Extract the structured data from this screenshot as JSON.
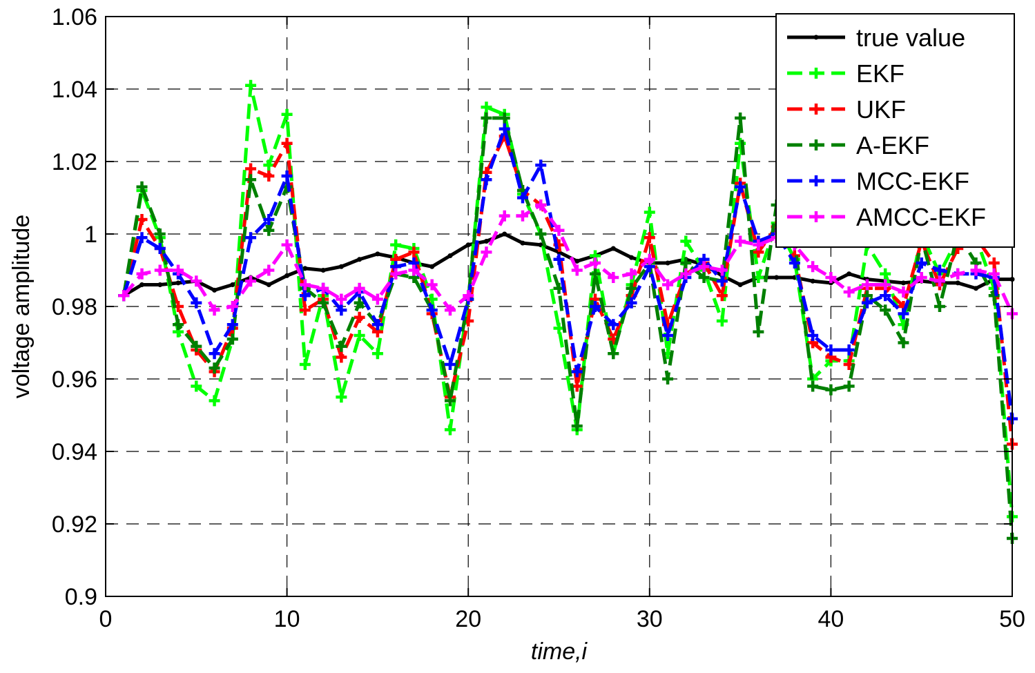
{
  "chart_data": {
    "type": "line",
    "title": "",
    "xlabel": "time,i",
    "ylabel": "voltage amplitude",
    "xlim": [
      0,
      50
    ],
    "ylim": [
      0.9,
      1.06
    ],
    "xticks": [
      0,
      10,
      20,
      30,
      40,
      50
    ],
    "yticks": [
      0.9,
      0.92,
      0.94,
      0.96,
      0.98,
      1.0,
      1.02,
      1.04,
      1.06
    ],
    "xtick_labels": [
      "0",
      "10",
      "20",
      "30",
      "40",
      "50"
    ],
    "ytick_labels": [
      "0.9",
      "0.92",
      "0.94",
      "0.96",
      "0.98",
      "1",
      "1.02",
      "1.04",
      "1.06"
    ],
    "grid": true,
    "legend_position": "top-right",
    "x": [
      1,
      2,
      3,
      4,
      5,
      6,
      7,
      8,
      9,
      10,
      11,
      12,
      13,
      14,
      15,
      16,
      17,
      18,
      19,
      20,
      21,
      22,
      23,
      24,
      25,
      26,
      27,
      28,
      29,
      30,
      31,
      32,
      33,
      34,
      35,
      36,
      37,
      38,
      39,
      40,
      41,
      42,
      43,
      44,
      45,
      46,
      47,
      48,
      49,
      50
    ],
    "series": [
      {
        "name": "true value",
        "color": "#000000",
        "dashed": false,
        "values": [
          0.983,
          0.986,
          0.986,
          0.9865,
          0.987,
          0.9845,
          0.986,
          0.988,
          0.986,
          0.9885,
          0.9905,
          0.99,
          0.991,
          0.993,
          0.9945,
          0.9935,
          0.992,
          0.991,
          0.994,
          0.997,
          0.998,
          1.0,
          0.9975,
          0.997,
          0.995,
          0.9925,
          0.994,
          0.996,
          0.9935,
          0.992,
          0.992,
          0.993,
          0.9915,
          0.9885,
          0.986,
          0.988,
          0.988,
          0.988,
          0.987,
          0.9865,
          0.989,
          0.9875,
          0.987,
          0.9865,
          0.987,
          0.9865,
          0.9865,
          0.985,
          0.9875,
          0.9875
        ]
      },
      {
        "name": "EKF",
        "color": "#00ff00",
        "dashed": true,
        "values": [
          0.983,
          1.012,
          0.999,
          0.973,
          0.958,
          0.954,
          0.971,
          1.041,
          1.019,
          1.033,
          0.964,
          0.983,
          0.955,
          0.972,
          0.967,
          0.997,
          0.996,
          0.982,
          0.946,
          0.982,
          1.035,
          1.033,
          1.011,
          1.0,
          0.974,
          0.946,
          0.994,
          0.967,
          0.986,
          1.006,
          0.967,
          0.998,
          0.99,
          0.976,
          1.025,
          0.988,
          1.003,
          0.993,
          0.96,
          0.965,
          0.965,
          0.997,
          0.989,
          0.975,
          1.0,
          0.989,
          0.999,
          0.999,
          0.985,
          0.922
        ]
      },
      {
        "name": "UKF",
        "color": "#ff0000",
        "dashed": true,
        "values": [
          0.983,
          1.004,
          0.996,
          0.98,
          0.968,
          0.962,
          0.974,
          1.018,
          1.016,
          1.025,
          0.979,
          0.982,
          0.966,
          0.977,
          0.973,
          0.993,
          0.995,
          0.978,
          0.955,
          0.976,
          1.017,
          1.027,
          1.012,
          1.008,
          0.997,
          0.958,
          0.982,
          0.971,
          0.983,
          0.999,
          0.975,
          0.989,
          0.992,
          0.983,
          1.014,
          0.995,
          1.002,
          0.994,
          0.97,
          0.966,
          0.964,
          0.985,
          0.985,
          0.98,
          0.998,
          0.986,
          0.996,
          0.999,
          0.992,
          0.942
        ]
      },
      {
        "name": "A-EKF",
        "color": "#008000",
        "dashed": true,
        "values": [
          0.983,
          1.013,
          1.0,
          0.975,
          0.969,
          0.963,
          0.971,
          1.015,
          1.001,
          1.013,
          0.985,
          0.981,
          0.969,
          0.981,
          0.975,
          0.989,
          0.988,
          0.979,
          0.954,
          0.982,
          1.032,
          1.032,
          1.012,
          1.0,
          0.985,
          0.947,
          0.989,
          0.967,
          0.985,
          0.992,
          0.96,
          0.992,
          0.988,
          0.987,
          1.032,
          0.973,
          1.008,
          0.998,
          0.958,
          0.957,
          0.958,
          0.983,
          0.979,
          0.97,
          0.999,
          0.98,
          1.0,
          0.992,
          0.983,
          0.916
        ]
      },
      {
        "name": "MCC-EKF",
        "color": "#0000ff",
        "dashed": true,
        "values": [
          0.983,
          0.999,
          0.996,
          0.989,
          0.981,
          0.967,
          0.975,
          0.999,
          1.004,
          1.016,
          0.983,
          0.985,
          0.979,
          0.984,
          0.975,
          0.991,
          0.992,
          0.979,
          0.964,
          0.982,
          1.015,
          1.029,
          1.01,
          1.019,
          0.993,
          0.962,
          0.98,
          0.975,
          0.981,
          0.991,
          0.972,
          0.988,
          0.993,
          0.987,
          1.013,
          0.998,
          1.0,
          0.992,
          0.972,
          0.968,
          0.968,
          0.981,
          0.983,
          0.978,
          0.992,
          0.99,
          0.989,
          0.989,
          0.988,
          0.949
        ]
      },
      {
        "name": "AMCC-EKF",
        "color": "#ff00ff",
        "dashed": true,
        "values": [
          0.983,
          0.989,
          0.99,
          0.99,
          0.987,
          0.979,
          0.98,
          0.987,
          0.99,
          0.997,
          0.986,
          0.985,
          0.982,
          0.985,
          0.982,
          0.989,
          0.99,
          0.986,
          0.979,
          0.983,
          0.995,
          1.005,
          1.005,
          1.008,
          1.001,
          0.99,
          0.992,
          0.988,
          0.989,
          0.993,
          0.986,
          0.989,
          0.991,
          0.99,
          0.998,
          0.997,
          0.999,
          0.997,
          0.991,
          0.988,
          0.984,
          0.986,
          0.986,
          0.984,
          0.988,
          0.987,
          0.989,
          0.99,
          0.989,
          0.978
        ]
      }
    ]
  }
}
